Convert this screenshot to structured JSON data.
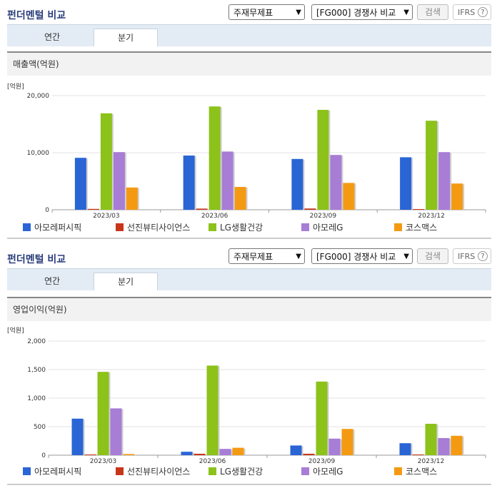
{
  "sections": [
    {
      "title": "펀더멘털 비교",
      "select1": "주재무제표",
      "select2": "[FG000] 경쟁사 비교",
      "search_label": "검색",
      "ifrs_label": "IFRS",
      "help_label": "?",
      "tabs": [
        {
          "label": "연간"
        },
        {
          "label": "분기"
        }
      ],
      "panel_title": "매출액(억원)",
      "unit": "[억원]"
    },
    {
      "title": "펀더멘털 비교",
      "select1": "주재무제표",
      "select2": "[FG000] 경쟁사 비교",
      "search_label": "검색",
      "ifrs_label": "IFRS",
      "help_label": "?",
      "tabs": [
        {
          "label": "연간"
        },
        {
          "label": "분기"
        }
      ],
      "panel_title": "영업이익(억원)",
      "unit": "[억원]"
    }
  ],
  "colors": {
    "아모레퍼시픽": "#2a65d6",
    "선진뷰티사이언스": "#c8361a",
    "LG생활건강": "#8cc21a",
    "아모레G": "#a77dd6",
    "코스맥스": "#f49a12"
  },
  "chart_data": [
    {
      "type": "bar",
      "title": "매출액(억원)",
      "ylabel": "[억원]",
      "categories": [
        "2023/03",
        "2023/06",
        "2023/09",
        "2023/12"
      ],
      "ylim": [
        0,
        20000
      ],
      "yticks": [
        "0",
        "10,000",
        "20,000"
      ],
      "ytick_values": [
        0,
        10000,
        20000
      ],
      "series": [
        {
          "name": "아모레퍼시픽",
          "color": "#2a65d6",
          "values": [
            9100,
            9500,
            8900,
            9200
          ]
        },
        {
          "name": "선진뷰티사이언스",
          "color": "#c8361a",
          "values": [
            150,
            200,
            220,
            120
          ]
        },
        {
          "name": "LG생활건강",
          "color": "#8cc21a",
          "values": [
            16900,
            18100,
            17500,
            15600
          ]
        },
        {
          "name": "아모레G",
          "color": "#a77dd6",
          "values": [
            10100,
            10200,
            9600,
            10100
          ]
        },
        {
          "name": "코스맥스",
          "color": "#f49a12",
          "values": [
            3900,
            4000,
            4700,
            4600
          ]
        }
      ],
      "legend": "bottom"
    },
    {
      "type": "bar",
      "title": "영업이익(억원)",
      "ylabel": "[억원]",
      "categories": [
        "2023/03",
        "2023/06",
        "2023/09",
        "2023/12"
      ],
      "ylim": [
        0,
        2000
      ],
      "yticks": [
        "0",
        "500",
        "1,000",
        "1,500",
        "2,000"
      ],
      "ytick_values": [
        0,
        500,
        1000,
        1500,
        2000
      ],
      "series": [
        {
          "name": "아모레퍼시픽",
          "color": "#2a65d6",
          "values": [
            640,
            60,
            170,
            210
          ]
        },
        {
          "name": "선진뷰티사이언스",
          "color": "#c8361a",
          "values": [
            5,
            25,
            25,
            5
          ]
        },
        {
          "name": "LG생활건강",
          "color": "#8cc21a",
          "values": [
            1460,
            1570,
            1290,
            550
          ]
        },
        {
          "name": "아모레G",
          "color": "#a77dd6",
          "values": [
            820,
            110,
            290,
            300
          ]
        },
        {
          "name": "코스맥스",
          "color": "#f49a12",
          "values": [
            20,
            130,
            460,
            340
          ]
        }
      ],
      "legend": "bottom"
    }
  ]
}
